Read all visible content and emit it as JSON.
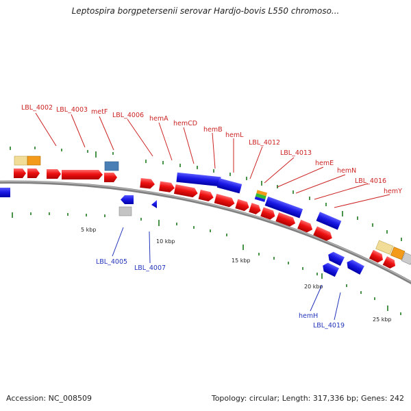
{
  "title": "Leptospira borgpetersenii serovar Hardjo-bovis L550 chromoso...",
  "footer": {
    "accession": "Accession: NC_008509",
    "summary": "Topology: circular; Length: 317,336 bp; Genes: 242"
  },
  "ticks": [
    "5 kbp",
    "10 kbp",
    "15 kbp",
    "20 kbp",
    "25 kbp"
  ],
  "genes_top": [
    {
      "name": "LBL_4002"
    },
    {
      "name": "LBL_4003"
    },
    {
      "name": "metF"
    },
    {
      "name": "LBL_4006"
    },
    {
      "name": "hemA"
    },
    {
      "name": "hemCD"
    },
    {
      "name": "hemB"
    },
    {
      "name": "hemL"
    },
    {
      "name": "LBL_4012"
    },
    {
      "name": "LBL_4013"
    },
    {
      "name": "hemE"
    },
    {
      "name": "hemN"
    },
    {
      "name": "LBL_4016"
    },
    {
      "name": "hemY"
    }
  ],
  "genes_bottom": [
    {
      "name": "LBL_4005"
    },
    {
      "name": "LBL_4007"
    },
    {
      "name": "hemH"
    },
    {
      "name": "LBL_4019"
    }
  ],
  "colors": {
    "forward": "#ee1111",
    "reverse": "#1a1ae6",
    "backbone": "#8c8c8c",
    "tick": "#1a7a1a",
    "label_top": "#cc2222",
    "label_bottom": "#2233bb",
    "orange": "#f39a1a",
    "beige": "#f1dd98",
    "grey": "#bdbdbd",
    "steel": "#4a7fb5",
    "green": "#33bb33"
  }
}
